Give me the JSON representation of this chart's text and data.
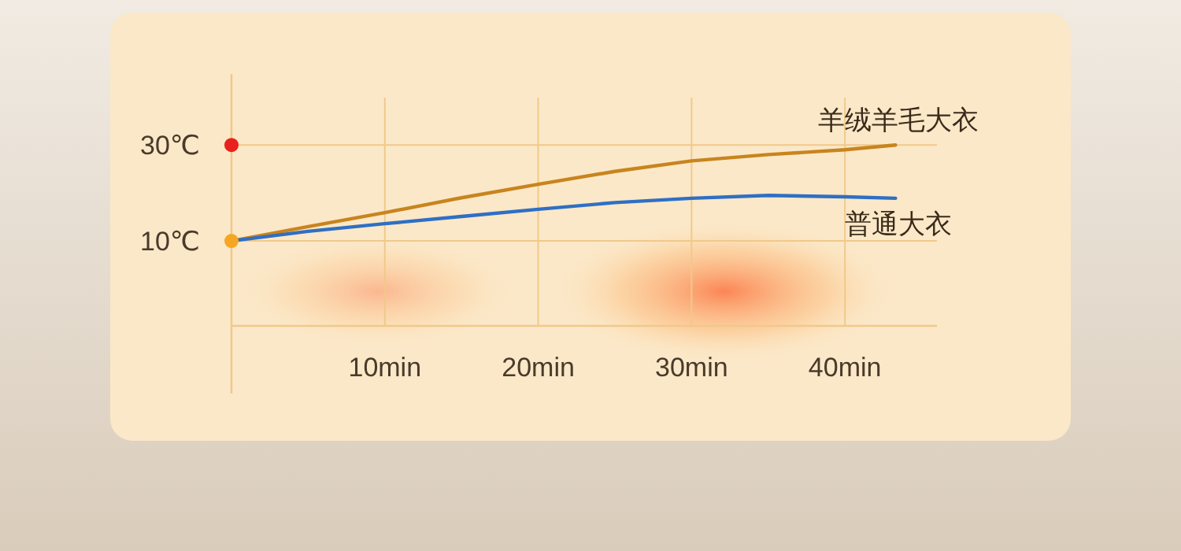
{
  "chart_data": {
    "type": "line",
    "xlim": [
      0,
      46
    ],
    "ylim": [
      -7.7,
      44.8
    ],
    "xticks": [
      {
        "value": 10,
        "label": "10min"
      },
      {
        "value": 20,
        "label": "20min"
      },
      {
        "value": 30,
        "label": "30min"
      },
      {
        "value": 40,
        "label": "40min"
      }
    ],
    "yticks": [
      {
        "value": 10,
        "label": "10℃"
      },
      {
        "value": 30,
        "label": "30℃"
      }
    ],
    "grid": true,
    "series": [
      {
        "name": "羊绒羊毛大衣",
        "color": "#c8841e",
        "x": [
          0,
          5,
          10,
          15,
          20,
          25,
          30,
          35,
          40,
          43.3
        ],
        "values": [
          10,
          13,
          15.9,
          19,
          21.8,
          24.5,
          26.7,
          28,
          29,
          30
        ]
      },
      {
        "name": "普通大衣",
        "color": "#2f6fc4",
        "x": [
          0,
          5,
          10,
          15,
          20,
          25,
          30,
          35,
          40,
          43.3
        ],
        "values": [
          10,
          12,
          13.6,
          15.1,
          16.6,
          18,
          18.9,
          19.5,
          19.2,
          18.9
        ]
      },
      {
        "type": "scatter",
        "colors": [
          "#e8211c",
          "#f5a623"
        ],
        "x": [
          0,
          0
        ],
        "values": [
          30,
          10
        ]
      }
    ]
  }
}
